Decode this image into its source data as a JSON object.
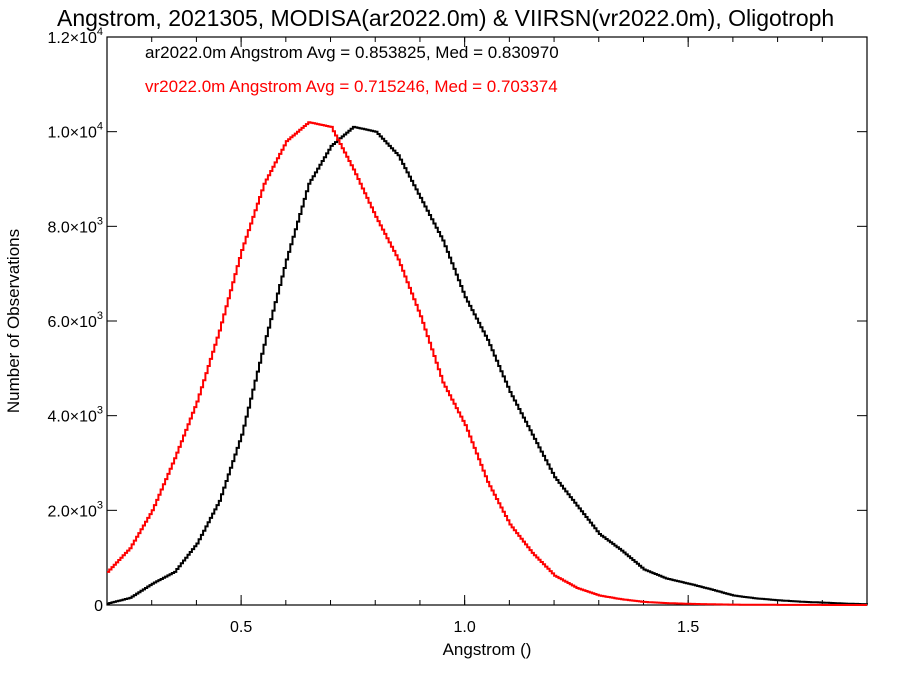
{
  "chart_data": {
    "type": "line",
    "title": "Angstrom, 2021305, MODISA(ar2022.0m) & VIIRSN(vr2022.0m), Oligotroph",
    "xlabel": "Angstrom ()",
    "ylabel": "Number of Observations",
    "xlim": [
      0.2,
      1.9
    ],
    "ylim": [
      0,
      12000
    ],
    "x_ticks": [
      0.5,
      1.0,
      1.5
    ],
    "x_tick_labels": [
      "0.5",
      "1.0",
      "1.5"
    ],
    "y_ticks": [
      0,
      2000,
      4000,
      6000,
      8000,
      10000,
      12000
    ],
    "y_tick_labels": [
      {
        "mant": "0",
        "exp": ""
      },
      {
        "mant": "2.0×10",
        "exp": "3"
      },
      {
        "mant": "4.0×10",
        "exp": "3"
      },
      {
        "mant": "6.0×10",
        "exp": "3"
      },
      {
        "mant": "8.0×10",
        "exp": "3"
      },
      {
        "mant": "1.0×10",
        "exp": "4"
      },
      {
        "mant": "1.2×10",
        "exp": "4"
      }
    ],
    "annotations": [
      {
        "text": "ar2022.0m Angstrom Avg = 0.853825, Med = 0.830970",
        "color": "#000000"
      },
      {
        "text": "vr2022.0m Angstrom Avg = 0.715246, Med = 0.703374",
        "color": "#ff0000"
      }
    ],
    "grid": false,
    "series": [
      {
        "color": "#000000",
        "x": [
          0.2,
          0.25,
          0.3,
          0.35,
          0.4,
          0.45,
          0.5,
          0.55,
          0.6,
          0.65,
          0.7,
          0.75,
          0.8,
          0.85,
          0.9,
          0.95,
          1.0,
          1.05,
          1.1,
          1.15,
          1.2,
          1.25,
          1.3,
          1.35,
          1.4,
          1.45,
          1.5,
          1.55,
          1.6,
          1.65,
          1.7,
          1.75,
          1.8,
          1.85,
          1.9
        ],
        "values": [
          30,
          150,
          450,
          700,
          1300,
          2200,
          3600,
          5500,
          7300,
          8900,
          9700,
          10100,
          10000,
          9500,
          8600,
          7700,
          6500,
          5600,
          4500,
          3600,
          2700,
          2100,
          1500,
          1150,
          750,
          560,
          450,
          330,
          200,
          140,
          100,
          70,
          50,
          30,
          15
        ]
      },
      {
        "color": "#ff0000",
        "x": [
          0.2,
          0.25,
          0.3,
          0.35,
          0.4,
          0.45,
          0.5,
          0.55,
          0.6,
          0.65,
          0.7,
          0.75,
          0.8,
          0.85,
          0.9,
          0.95,
          1.0,
          1.05,
          1.1,
          1.15,
          1.2,
          1.25,
          1.3,
          1.35,
          1.4,
          1.45,
          1.5,
          1.55,
          1.6,
          1.65,
          1.7,
          1.75,
          1.8,
          1.85,
          1.9
        ],
        "values": [
          700,
          1200,
          2000,
          3100,
          4300,
          5800,
          7500,
          8900,
          9800,
          10200,
          10100,
          9200,
          8200,
          7300,
          6100,
          4700,
          3800,
          2600,
          1700,
          1100,
          620,
          360,
          200,
          120,
          65,
          40,
          25,
          15,
          8,
          5,
          3,
          2,
          1,
          1,
          1
        ]
      }
    ]
  }
}
